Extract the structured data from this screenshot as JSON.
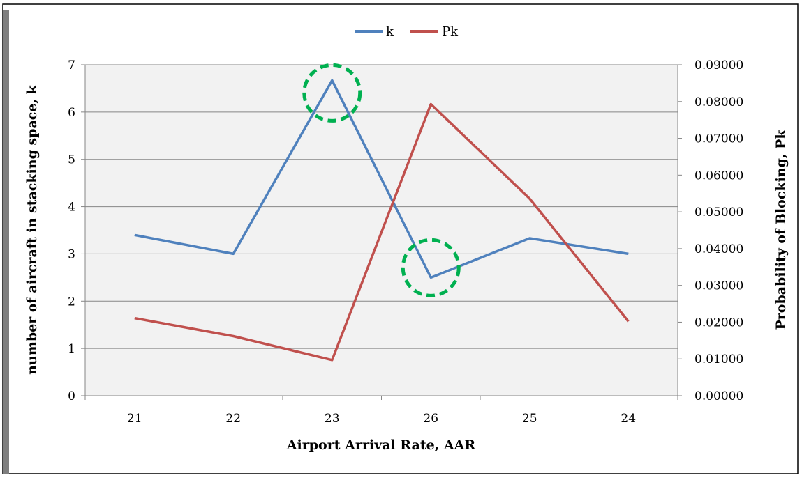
{
  "chart_data": {
    "type": "line",
    "categories": [
      "21",
      "22",
      "23",
      "26",
      "25",
      "24"
    ],
    "xlabel": "Airport Arrival Rate, AAR",
    "ylabel": "number of aircraft in stacking space, k",
    "y2label": "Probability of Blocking, Pk",
    "ylim": [
      0,
      7
    ],
    "y2lim": [
      0,
      0.09
    ],
    "yticks": [
      "0",
      "1",
      "2",
      "3",
      "4",
      "5",
      "6",
      "7"
    ],
    "y2ticks": [
      "0.00000",
      "0.01000",
      "0.02000",
      "0.03000",
      "0.04000",
      "0.05000",
      "0.06000",
      "0.07000",
      "0.08000",
      "0.09000"
    ],
    "series": [
      {
        "name": "k",
        "axis": "left",
        "color": "#4f81bd",
        "values": [
          3.4,
          3.0,
          6.67,
          2.5,
          3.33,
          3.0
        ]
      },
      {
        "name": "Pk",
        "axis": "right",
        "color": "#c0504d",
        "values": [
          0.0211,
          0.0162,
          0.0097,
          0.0793,
          0.0536,
          0.0202
        ]
      }
    ],
    "highlights": [
      {
        "category": "23",
        "series": "k",
        "color": "#00b050"
      },
      {
        "category": "26",
        "series": "k",
        "color": "#00b050"
      }
    ],
    "grid": true,
    "legend": "top-center",
    "plot_background": "#f2f2f2"
  }
}
